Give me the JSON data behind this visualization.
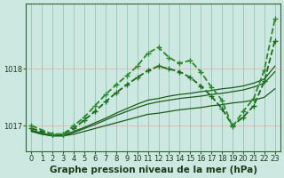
{
  "title": "Graphe pression niveau de la mer (hPa)",
  "bg_color": "#cce8e0",
  "grid_color_h": "#e8b8b8",
  "grid_color_v": "#99ccbb",
  "xlim": [
    -0.5,
    23.5
  ],
  "ylim": [
    1016.55,
    1019.15
  ],
  "yticks": [
    1017,
    1018
  ],
  "xticks": [
    0,
    1,
    2,
    3,
    4,
    5,
    6,
    7,
    8,
    9,
    10,
    11,
    12,
    13,
    14,
    15,
    16,
    17,
    18,
    19,
    20,
    21,
    22,
    23
  ],
  "series": [
    {
      "x": [
        0,
        1,
        2,
        3,
        4,
        5,
        6,
        7,
        8,
        9,
        10,
        11,
        12,
        13,
        14,
        15,
        16,
        17,
        18,
        19,
        20,
        21,
        22,
        23
      ],
      "y": [
        1016.9,
        1016.85,
        1016.82,
        1016.82,
        1016.85,
        1016.9,
        1016.95,
        1017.0,
        1017.05,
        1017.1,
        1017.15,
        1017.2,
        1017.22,
        1017.25,
        1017.28,
        1017.3,
        1017.32,
        1017.35,
        1017.37,
        1017.4,
        1017.42,
        1017.45,
        1017.5,
        1017.65
      ],
      "color": "#1a5c1a",
      "lw": 0.9,
      "marker": null,
      "ls": "-"
    },
    {
      "x": [
        0,
        1,
        2,
        3,
        4,
        5,
        6,
        7,
        8,
        9,
        10,
        11,
        12,
        13,
        14,
        15,
        16,
        17,
        18,
        19,
        20,
        21,
        22,
        23
      ],
      "y": [
        1016.9,
        1016.85,
        1016.82,
        1016.82,
        1016.88,
        1016.95,
        1017.02,
        1017.1,
        1017.18,
        1017.25,
        1017.32,
        1017.38,
        1017.42,
        1017.45,
        1017.48,
        1017.5,
        1017.52,
        1017.55,
        1017.57,
        1017.6,
        1017.63,
        1017.68,
        1017.75,
        1017.95
      ],
      "color": "#1a5c1a",
      "lw": 0.9,
      "marker": null,
      "ls": "-"
    },
    {
      "x": [
        0,
        1,
        2,
        3,
        4,
        5,
        6,
        7,
        8,
        9,
        10,
        11,
        12,
        13,
        14,
        15,
        16,
        17,
        18,
        19,
        20,
        21,
        22,
        23
      ],
      "y": [
        1016.92,
        1016.87,
        1016.83,
        1016.83,
        1016.9,
        1016.97,
        1017.05,
        1017.13,
        1017.22,
        1017.3,
        1017.38,
        1017.45,
        1017.48,
        1017.52,
        1017.55,
        1017.57,
        1017.6,
        1017.62,
        1017.65,
        1017.67,
        1017.7,
        1017.75,
        1017.82,
        1018.05
      ],
      "color": "#1a5c1a",
      "lw": 0.9,
      "marker": null,
      "ls": "-"
    },
    {
      "x": [
        0,
        1,
        2,
        3,
        4,
        5,
        6,
        7,
        8,
        9,
        10,
        11,
        12,
        13,
        14,
        15,
        16,
        17,
        18,
        19,
        20,
        21,
        22,
        23
      ],
      "y": [
        1016.95,
        1016.9,
        1016.85,
        1016.85,
        1016.95,
        1017.1,
        1017.25,
        1017.42,
        1017.58,
        1017.72,
        1017.85,
        1017.97,
        1018.05,
        1018.0,
        1017.95,
        1017.85,
        1017.7,
        1017.52,
        1017.3,
        1017.0,
        1017.15,
        1017.35,
        1017.78,
        1018.5
      ],
      "color": "#1a6b1a",
      "lw": 1.3,
      "marker": "+",
      "ms": 4,
      "ls": "--"
    },
    {
      "x": [
        0,
        2,
        3,
        4,
        5,
        6,
        7,
        8,
        9,
        10,
        11,
        12,
        13,
        14,
        15,
        16,
        17,
        18,
        19,
        20,
        21,
        22,
        23
      ],
      "y": [
        1017.0,
        1016.85,
        1016.85,
        1017.0,
        1017.15,
        1017.35,
        1017.55,
        1017.72,
        1017.88,
        1018.05,
        1018.28,
        1018.38,
        1018.2,
        1018.1,
        1018.15,
        1017.95,
        1017.68,
        1017.45,
        1016.98,
        1017.25,
        1017.48,
        1017.98,
        1018.88
      ],
      "color": "#2a8a2a",
      "lw": 1.3,
      "marker": "+",
      "ms": 4,
      "ls": "--"
    }
  ],
  "tick_fontsize": 6,
  "title_fontsize": 7.5,
  "title_color": "#1a3a1a"
}
